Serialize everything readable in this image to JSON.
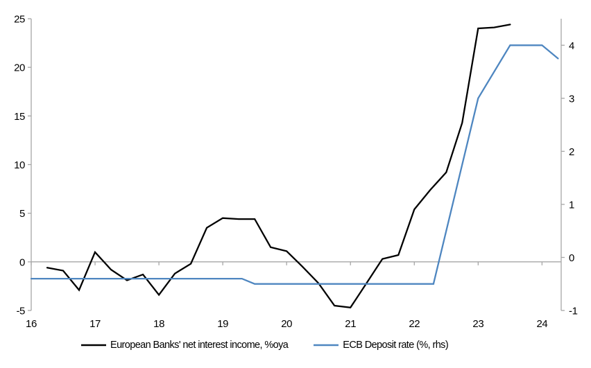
{
  "chart_data": {
    "type": "line",
    "title": "",
    "xlabel": "",
    "ylabel_left": "",
    "ylabel_right": "",
    "grid": false,
    "legend_position": "bottom",
    "x_axis": {
      "ticks": [
        16,
        17,
        18,
        19,
        20,
        21,
        22,
        23,
        24
      ],
      "range": [
        16,
        24.3
      ]
    },
    "left_axis": {
      "ticks": [
        -5,
        0,
        5,
        10,
        15,
        20,
        25
      ],
      "range": [
        -5,
        25
      ]
    },
    "right_axis": {
      "ticks": [
        -1,
        0,
        1,
        2,
        3,
        4
      ],
      "range": [
        -1,
        4.5
      ]
    },
    "series": [
      {
        "name": "European Banks' net interest income, %oya",
        "axis": "left",
        "color": "#000000",
        "x": [
          16.25,
          16.5,
          16.75,
          17,
          17.25,
          17.5,
          17.75,
          18,
          18.25,
          18.5,
          18.75,
          19,
          19.25,
          19.5,
          19.75,
          20,
          20.25,
          20.5,
          20.75,
          21,
          21.25,
          21.5,
          21.75,
          22,
          22.25,
          22.5,
          22.75,
          23,
          23.25,
          23.5
        ],
        "y": [
          -0.6,
          -0.9,
          -2.9,
          1.0,
          -0.8,
          -1.9,
          -1.3,
          -3.4,
          -1.2,
          -0.2,
          3.5,
          4.5,
          4.4,
          4.4,
          1.5,
          1.1,
          -0.5,
          -2.2,
          -4.5,
          -4.7,
          -2.2,
          0.3,
          0.7,
          5.4,
          7.4,
          9.2,
          14.3,
          24.0,
          24.1,
          24.4
        ]
      },
      {
        "name": "ECB Deposit rate (%, rhs)",
        "axis": "right",
        "color": "#4e86c0",
        "x": [
          16,
          19.3,
          19.5,
          22.3,
          23,
          23.5,
          24,
          24.25
        ],
        "y": [
          -0.4,
          -0.4,
          -0.5,
          -0.5,
          3.0,
          4.0,
          4.0,
          3.75
        ]
      }
    ]
  },
  "legend": {
    "series1_label": "European Banks' net interest income, %oya",
    "series2_label": "ECB Deposit rate (%, rhs)"
  },
  "colors": {
    "nii_line": "#000000",
    "ecb_line": "#4e86c0",
    "axis": "#a6a6a6",
    "tick_label": "#000000",
    "background": "#ffffff"
  }
}
